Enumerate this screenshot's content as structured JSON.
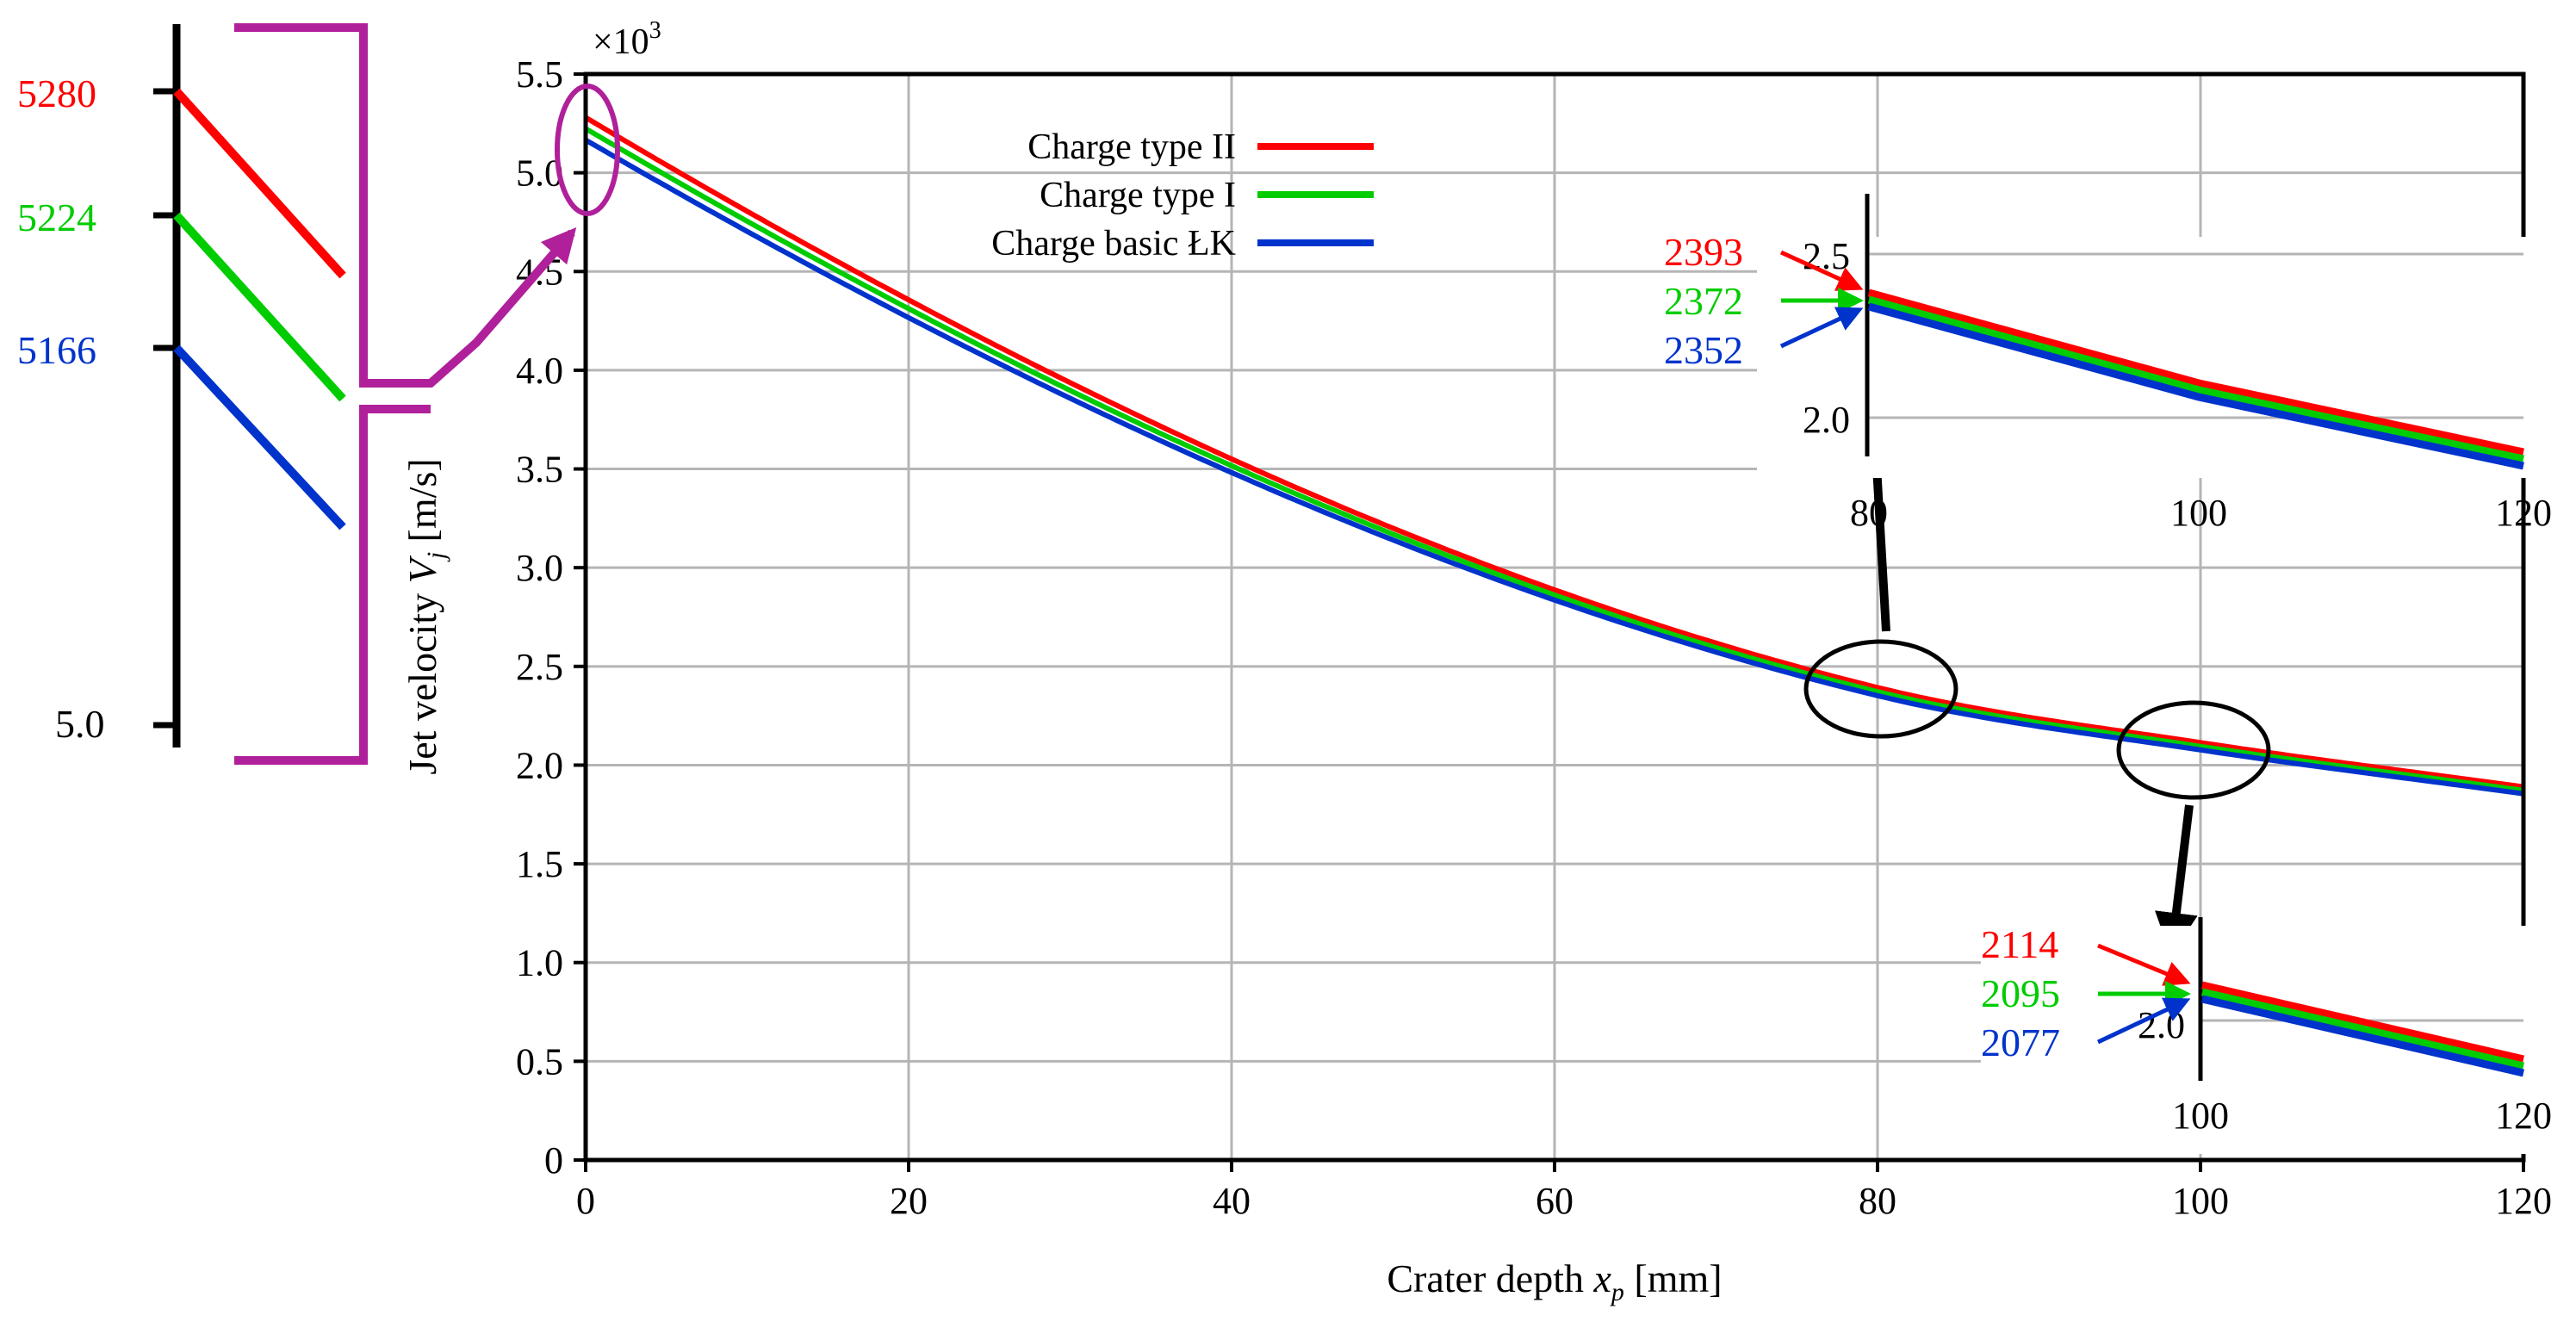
{
  "chart_data": {
    "type": "line",
    "title": "",
    "xlabel": {
      "main": "Crater depth ",
      "var": "x",
      "sub": "p",
      "unit": " [mm]"
    },
    "ylabel": {
      "main": "Jet velocity ",
      "var": "V",
      "sub": "j",
      "unit": " [m/s]"
    },
    "y_multiplier": {
      "base": "×10",
      "exp": "3"
    },
    "xlim": [
      0,
      120
    ],
    "ylim": [
      0,
      5.5
    ],
    "x_ticks": [
      0,
      20,
      40,
      60,
      80,
      100,
      120
    ],
    "y_ticks": [
      0,
      0.5,
      1.0,
      1.5,
      2.0,
      2.5,
      3.0,
      3.5,
      4.0,
      4.5,
      5.0,
      5.5
    ],
    "grid": true,
    "legend_position": "top-center",
    "x": [
      0,
      80,
      100,
      120
    ],
    "series": [
      {
        "name": "Charge type II",
        "color": "#ff0000",
        "values": [
          5.28,
          2.393,
          2.114,
          1.89
        ]
      },
      {
        "name": "Charge type I",
        "color": "#00cc00",
        "values": [
          5.224,
          2.372,
          2.095,
          1.872
        ]
      },
      {
        "name": "Charge basic ŁK",
        "color": "#0033cc",
        "values": [
          5.166,
          2.352,
          2.077,
          1.855
        ]
      }
    ],
    "annotations": {
      "start": {
        "values": [
          "5280",
          "5224",
          "5166"
        ],
        "axis_label": "5.0"
      },
      "inset_80": {
        "values": [
          "2393",
          "2372",
          "2352"
        ],
        "y_ticks": [
          "2.5",
          "2.0"
        ],
        "x_ticks": [
          "80",
          "100",
          "120"
        ]
      },
      "inset_100": {
        "values": [
          "2114",
          "2095",
          "2077"
        ],
        "y_ticks": [
          "2.0"
        ],
        "x_ticks": [
          "100",
          "120"
        ]
      }
    },
    "colors": {
      "magenta": "#b0209a",
      "red": "#ff0000",
      "green": "#00cc00",
      "blue": "#0033cc"
    }
  }
}
